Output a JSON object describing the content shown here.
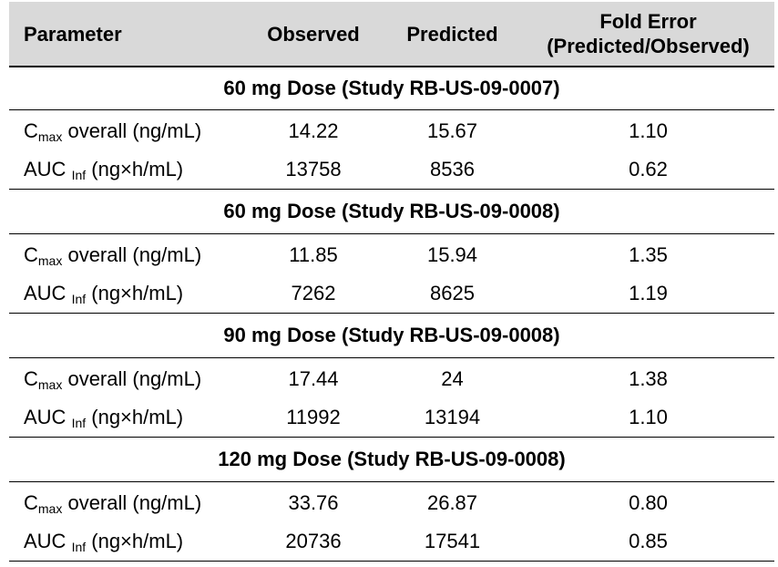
{
  "header": {
    "parameter": "Parameter",
    "observed": "Observed",
    "predicted": "Predicted",
    "fold_error_line1": "Fold Error",
    "fold_error_line2": "(Predicted/Observed)"
  },
  "sections": [
    {
      "title": "60 mg Dose (Study RB-US-09-0007)",
      "rows": [
        {
          "name_main": "C",
          "name_sub": "max",
          "name_rest": " overall (ng/mL)",
          "observed": "14.22",
          "predicted": "15.67",
          "fold_error": "1.10"
        },
        {
          "name_main": "AUC ",
          "name_sub": "Inf",
          "name_rest": " (ng×h/mL)",
          "observed": "13758",
          "predicted": "8536",
          "fold_error": "0.62"
        }
      ]
    },
    {
      "title": "60 mg Dose (Study RB-US-09-0008)",
      "rows": [
        {
          "name_main": "C",
          "name_sub": "max",
          "name_rest": " overall (ng/mL)",
          "observed": "11.85",
          "predicted": "15.94",
          "fold_error": "1.35"
        },
        {
          "name_main": "AUC ",
          "name_sub": "Inf",
          "name_rest": " (ng×h/mL)",
          "observed": "7262",
          "predicted": "8625",
          "fold_error": "1.19"
        }
      ]
    },
    {
      "title": "90 mg Dose (Study RB-US-09-0008)",
      "rows": [
        {
          "name_main": "C",
          "name_sub": "max",
          "name_rest": " overall (ng/mL)",
          "observed": "17.44",
          "predicted": "24",
          "fold_error": "1.38"
        },
        {
          "name_main": "AUC ",
          "name_sub": "Inf",
          "name_rest": " (ng×h/mL)",
          "observed": "11992",
          "predicted": "13194",
          "fold_error": "1.10"
        }
      ]
    },
    {
      "title": "120 mg Dose (Study RB-US-09-0008)",
      "rows": [
        {
          "name_main": "C",
          "name_sub": "max",
          "name_rest": " overall (ng/mL)",
          "observed": "33.76",
          "predicted": "26.87",
          "fold_error": "0.80"
        },
        {
          "name_main": "AUC ",
          "name_sub": "Inf",
          "name_rest": " (ng×h/mL)",
          "observed": "20736",
          "predicted": "17541",
          "fold_error": "0.85"
        }
      ]
    }
  ]
}
